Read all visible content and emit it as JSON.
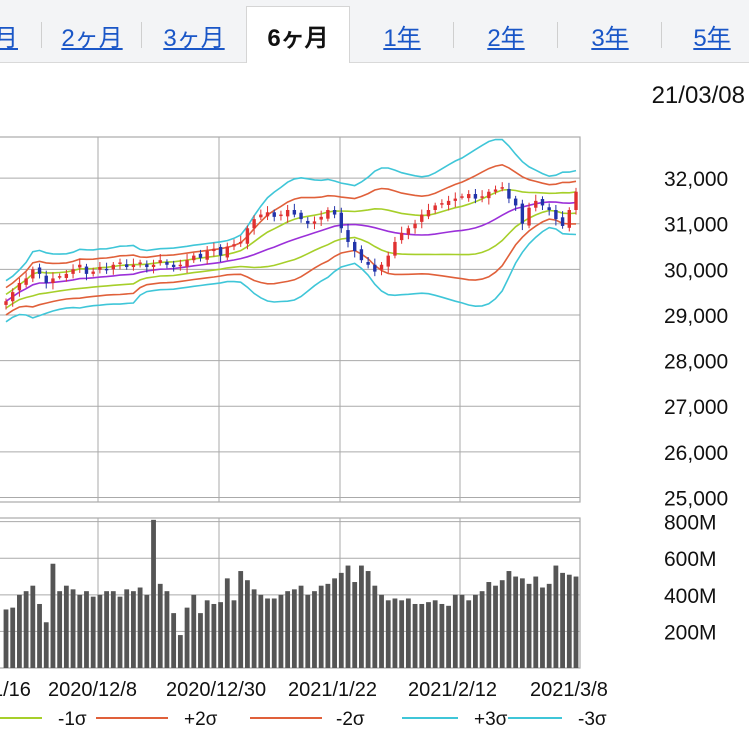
{
  "tabs": [
    {
      "label": "月",
      "active": false
    },
    {
      "label": "2ヶ月",
      "active": false
    },
    {
      "label": "3ヶ月",
      "active": false
    },
    {
      "label": "6ヶ月",
      "active": true
    },
    {
      "label": "1年",
      "active": false
    },
    {
      "label": "2年",
      "active": false
    },
    {
      "label": "3年",
      "active": false
    },
    {
      "label": "5年",
      "active": false
    }
  ],
  "date_label": "21/03/08",
  "colors": {
    "up": "#e03030",
    "down": "#2233aa",
    "ma": "#9b30d9",
    "sigma1": "#a6cf2a",
    "sigma2": "#e0603a",
    "sigma3": "#3fc6d8",
    "volume": "#555555",
    "grid": "#aaaaaa"
  },
  "chart_data": [
    {
      "type": "candlestick",
      "title": "",
      "xlabel": "",
      "ylabel": "",
      "ylim": [
        24900,
        32900
      ],
      "y_ticks": [
        25000,
        26000,
        27000,
        28000,
        29000,
        30000,
        31000,
        32000
      ],
      "y_tick_labels": [
        "25,000",
        "26,000",
        "27,000",
        "28,000",
        "29,000",
        "30,000",
        "31,000",
        "32,000"
      ],
      "grid": true,
      "close": [
        29300,
        29500,
        29700,
        29800,
        30000,
        29900,
        29700,
        29800,
        29850,
        29900,
        30000,
        30100,
        29900,
        29950,
        30050,
        30000,
        30100,
        30150,
        30050,
        30100,
        30150,
        30050,
        30100,
        30200,
        30100,
        30050,
        30100,
        30200,
        30300,
        30250,
        30400,
        30450,
        30300,
        30500,
        30550,
        30600,
        30900,
        31100,
        31200,
        31250,
        31150,
        31200,
        31300,
        31200,
        31100,
        31000,
        31050,
        31150,
        31300,
        31200,
        30900,
        30600,
        30400,
        30200,
        30100,
        29950,
        30100,
        30300,
        30600,
        30800,
        30900,
        31000,
        31200,
        31300,
        31400,
        31450,
        31500,
        31550,
        31600,
        31650,
        31550,
        31600,
        31700,
        31750,
        31800,
        31550,
        31400,
        31000,
        31350,
        31500,
        31400,
        31300,
        31100,
        30950,
        31300,
        31700
      ]
    },
    {
      "type": "bar",
      "title": "",
      "ylim": [
        0,
        820
      ],
      "y_ticks": [
        200,
        400,
        600,
        800
      ],
      "y_tick_labels": [
        "200M",
        "400M",
        "600M",
        "800M"
      ],
      "values": [
        320,
        330,
        400,
        420,
        450,
        350,
        250,
        570,
        420,
        450,
        430,
        400,
        420,
        390,
        400,
        420,
        420,
        390,
        430,
        420,
        440,
        400,
        810,
        460,
        420,
        300,
        180,
        330,
        400,
        300,
        370,
        350,
        360,
        490,
        370,
        530,
        480,
        430,
        400,
        380,
        380,
        400,
        420,
        430,
        450,
        400,
        420,
        450,
        460,
        490,
        520,
        560,
        470,
        560,
        530,
        450,
        400,
        370,
        380,
        370,
        380,
        350,
        350,
        360,
        370,
        350,
        340,
        400,
        400,
        370,
        400,
        420,
        470,
        450,
        480,
        530,
        500,
        490,
        460,
        500,
        440,
        460,
        560,
        520,
        510,
        500
      ],
      "x_tick_labels": [
        "1/16",
        "2020/12/8",
        "2020/12/30",
        "2021/1/22",
        "2021/2/12",
        "2021/3/8"
      ]
    }
  ],
  "legend": [
    {
      "label": "-1σ",
      "color_key": "sigma1"
    },
    {
      "label": "+2σ",
      "color_key": "sigma2"
    },
    {
      "label": "-2σ",
      "color_key": "sigma2"
    },
    {
      "label": "+3σ",
      "color_key": "sigma3"
    },
    {
      "label": "-3σ",
      "color_key": "sigma3"
    }
  ]
}
